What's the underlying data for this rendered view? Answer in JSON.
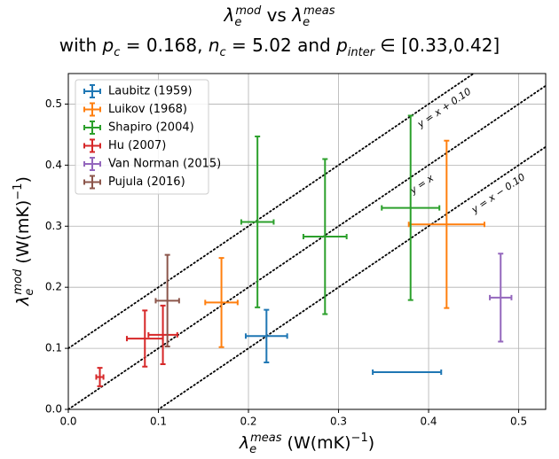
{
  "chart_data": {
    "type": "errorbar",
    "title": [
      "λ",
      "e",
      "mod",
      " vs ",
      "λ",
      "e",
      "meas"
    ],
    "subtitle": [
      "with ",
      "p",
      "c",
      " = 0.168, ",
      "n",
      "c",
      " = 5.02 and ",
      "p",
      "inter",
      " ∈ [0.33,0.42]"
    ],
    "xlabel": [
      "λ",
      "e",
      "meas",
      " (W(mK)",
      "−1",
      ")"
    ],
    "ylabel": [
      "λ",
      "e",
      "mod",
      " (W(mK)",
      "−1",
      ")"
    ],
    "xlim": [
      0,
      0.53
    ],
    "ylim": [
      0,
      0.55
    ],
    "xticks": [
      {
        "value": 0,
        "label": "0.0"
      },
      0.1,
      0.2,
      0.3,
      0.4,
      0.5
    ],
    "yticks": [
      {
        "value": 0,
        "label": "0.0"
      },
      0.1,
      0.2,
      0.3,
      0.4,
      0.5
    ],
    "grid": true,
    "legend": "upper left",
    "reference_lines": [
      {
        "offset": 0.1,
        "label": "y = x + 0.10"
      },
      {
        "offset": 0,
        "label": "y = x"
      },
      {
        "offset": -0.1,
        "label": "y = x − 0.10"
      }
    ],
    "series": [
      {
        "name": "Laubitz (1959)",
        "color": "#1f77b4",
        "x": [
          0.22,
          0.376
        ],
        "y": [
          0.12,
          0.061
        ],
        "xerr": [
          0.023,
          0.038
        ],
        "yerr": [
          0.043,
          0
        ]
      },
      {
        "name": "Luikov (1968)",
        "color": "#ff7f0e",
        "x": [
          0.17,
          0.42
        ],
        "y": [
          0.175,
          0.303
        ],
        "xerr": [
          0.018,
          0.042
        ],
        "yerr": [
          0.073,
          0.137
        ]
      },
      {
        "name": "Shapiro (2004)",
        "color": "#2ca02c",
        "x": [
          0.21,
          0.285,
          0.38
        ],
        "y": [
          0.307,
          0.283,
          0.33
        ],
        "xerr": [
          0.018,
          0.024,
          0.032
        ],
        "yerr": [
          0.14,
          0.127,
          0.151
        ]
      },
      {
        "name": "Hu (2007)",
        "color": "#d62728",
        "x": [
          0.035,
          0.085,
          0.105
        ],
        "y": [
          0.053,
          0.116,
          0.122
        ],
        "xerr": [
          0.004,
          0.02,
          0.016
        ],
        "yerr": [
          0.015,
          0.046,
          0.048
        ]
      },
      {
        "name": "Van Norman (2015)",
        "color": "#9467bd",
        "x": [
          0.48
        ],
        "y": [
          0.183
        ],
        "xerr": [
          0.012
        ],
        "yerr": [
          0.072
        ]
      },
      {
        "name": "Pujula (2016)",
        "color": "#8c564b",
        "x": [
          0.11
        ],
        "y": [
          0.178
        ],
        "xerr": [
          0.013
        ],
        "yerr": [
          0.075
        ]
      }
    ]
  }
}
